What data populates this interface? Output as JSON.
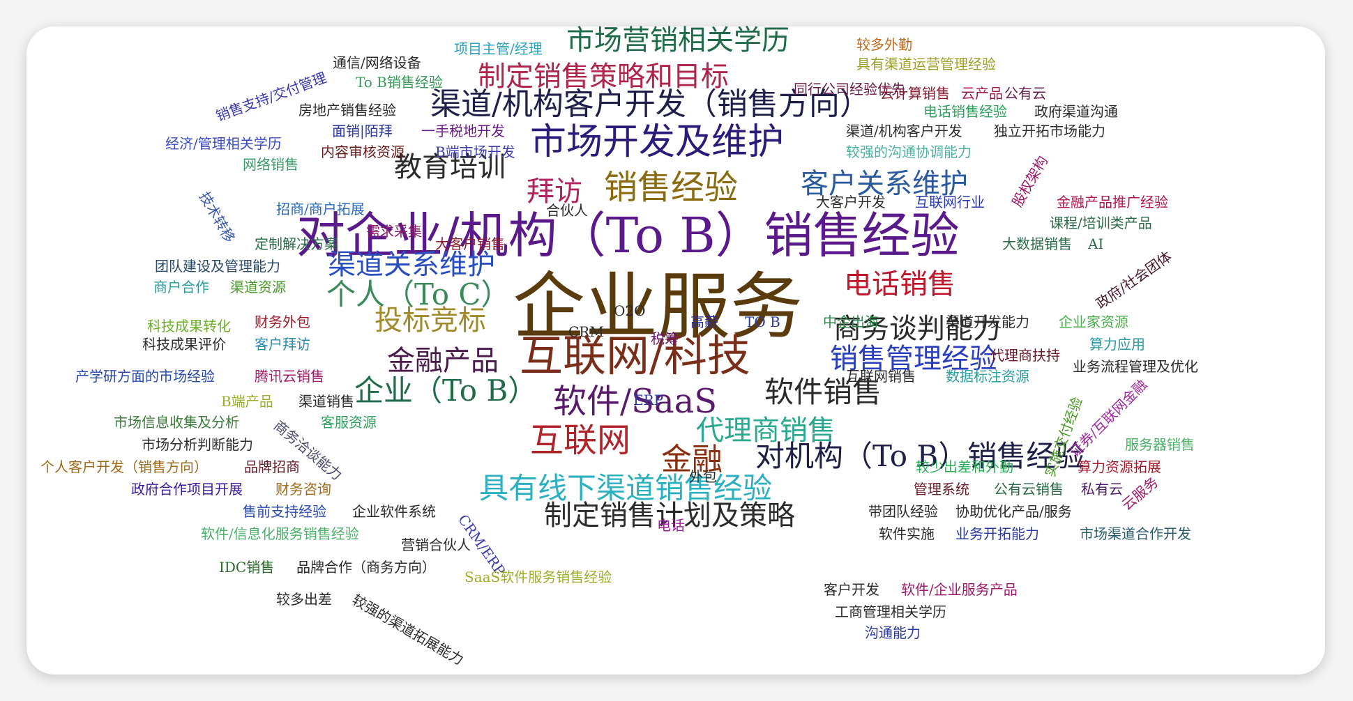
{
  "words": [
    {
      "id": "w0",
      "text": "企业服务",
      "color": "#5a3b0e"
    },
    {
      "id": "w1",
      "text": "对企业/机构（To B）销售经验",
      "color": "#5a1a8c"
    },
    {
      "id": "w2",
      "text": "互联网/科技",
      "color": "#7a2e1a"
    },
    {
      "id": "w3",
      "text": "市场开发及维护",
      "color": "#2a1c7a"
    },
    {
      "id": "w4",
      "text": "渠道/机构客户开发（销售方向）",
      "color": "#1f1f4a"
    },
    {
      "id": "w5",
      "text": "销售经验",
      "color": "#8a6b10"
    },
    {
      "id": "w6",
      "text": "市场营销相关学历",
      "color": "#1f6b4a"
    },
    {
      "id": "w7",
      "text": "制定销售策略和目标",
      "color": "#b0254b"
    },
    {
      "id": "w8",
      "text": "教育培训",
      "color": "#2b2b2b"
    },
    {
      "id": "w9",
      "text": "客户关系维护",
      "color": "#2a5aa0"
    },
    {
      "id": "w10",
      "text": "拜访",
      "color": "#b02560"
    },
    {
      "id": "w11",
      "text": "渠道关系维护",
      "color": "#2a4fc0"
    },
    {
      "id": "w12",
      "text": "个人（To C）",
      "color": "#3b8a5a"
    },
    {
      "id": "w13",
      "text": "电话销售",
      "color": "#c0152a"
    },
    {
      "id": "w14",
      "text": "投标竞标",
      "color": "#a08a2a"
    },
    {
      "id": "w15",
      "text": "商务谈判能力",
      "color": "#2b2b2b"
    },
    {
      "id": "w16",
      "text": "金融产品",
      "color": "#4a1a4a"
    },
    {
      "id": "w17",
      "text": "销售管理经验",
      "color": "#2a3fc0"
    },
    {
      "id": "w18",
      "text": "企业（To B）",
      "color": "#1f6b4a"
    },
    {
      "id": "w19",
      "text": "软件/SaaS",
      "color": "#5a1a6b"
    },
    {
      "id": "w20",
      "text": "软件销售",
      "color": "#2b2b2b"
    },
    {
      "id": "w21",
      "text": "代理商销售",
      "color": "#2aa890"
    },
    {
      "id": "w22",
      "text": "互联网",
      "color": "#b0252b"
    },
    {
      "id": "w23",
      "text": "金融",
      "color": "#8a2e0e"
    },
    {
      "id": "w24",
      "text": "对机构（To B）销售经验",
      "color": "#1f1f4a"
    },
    {
      "id": "w25",
      "text": "具有线下渠道销售经验",
      "color": "#2ab0c0"
    },
    {
      "id": "w26",
      "text": "制定销售计划及策略",
      "color": "#2b2b2b"
    },
    {
      "id": "w27",
      "text": "项目主管/经理",
      "color": "#2aa0c0"
    },
    {
      "id": "w28",
      "text": "较多外勤",
      "color": "#c06a1a"
    },
    {
      "id": "w29",
      "text": "通信/网络设备",
      "color": "#2b2b2b"
    },
    {
      "id": "w30",
      "text": "具有渠道运营管理经验",
      "color": "#a0a02a"
    },
    {
      "id": "w31",
      "text": "To B销售经验",
      "color": "#3b9a5a"
    },
    {
      "id": "w32",
      "text": "同行公司经验优先",
      "color": "#6a1a4a"
    },
    {
      "id": "w33",
      "text": "云计算销售",
      "color": "#8a1a2a"
    },
    {
      "id": "w34",
      "text": "云产品",
      "color": "#a01a4a"
    },
    {
      "id": "w35",
      "text": "公有云",
      "color": "#6a1a4a"
    },
    {
      "id": "w36",
      "text": "销售支持/交付管理",
      "color": "#3a3ab0"
    },
    {
      "id": "w37",
      "text": "房地产销售经验",
      "color": "#2b2b2b"
    },
    {
      "id": "w38",
      "text": "电话销售经验",
      "color": "#2aa05a"
    },
    {
      "id": "w39",
      "text": "政府渠道沟通",
      "color": "#2b2b2b"
    },
    {
      "id": "w40",
      "text": "经济/管理相关学历",
      "color": "#3a4ac0"
    },
    {
      "id": "w41",
      "text": "面销|陌拜",
      "color": "#2a3aa0"
    },
    {
      "id": "w42",
      "text": "一手税地开发",
      "color": "#6a1a8a"
    },
    {
      "id": "w43",
      "text": "渠道/机构客户开发",
      "color": "#2b2b2b"
    },
    {
      "id": "w44",
      "text": "独立开拓市场能力",
      "color": "#2b2b2b"
    },
    {
      "id": "w45",
      "text": "内容审核资源",
      "color": "#6a1a1a"
    },
    {
      "id": "w46",
      "text": "B端市场开发",
      "color": "#3a3ab0"
    },
    {
      "id": "w47",
      "text": "较强的沟通协调能力",
      "color": "#4ab0a0"
    },
    {
      "id": "w48",
      "text": "股权架构",
      "color": "#a01a6a"
    },
    {
      "id": "w49",
      "text": "网络销售",
      "color": "#3a9a6a"
    },
    {
      "id": "w50",
      "text": "技术转移",
      "color": "#3a5ab0"
    },
    {
      "id": "w51",
      "text": "招商/商户拓展",
      "color": "#2a6ac0"
    },
    {
      "id": "w52",
      "text": "合伙人",
      "color": "#2b2b2b"
    },
    {
      "id": "w53",
      "text": "大客户开发",
      "color": "#2b2b2b"
    },
    {
      "id": "w54",
      "text": "互联网行业",
      "color": "#2a3ab0"
    },
    {
      "id": "w55",
      "text": "金融产品推广经验",
      "color": "#b01a4a"
    },
    {
      "id": "w56",
      "text": "需求采集",
      "color": "#8a1a6a"
    },
    {
      "id": "w57",
      "text": "课程/培训类产品",
      "color": "#2a6a4a"
    },
    {
      "id": "w58",
      "text": "定制解决方案",
      "color": "#2a6a4a"
    },
    {
      "id": "w59",
      "text": "大客户销售",
      "color": "#8a1a2a"
    },
    {
      "id": "w60",
      "text": "大数据销售",
      "color": "#2a6a4a"
    },
    {
      "id": "w61",
      "text": "AI",
      "color": "#2a6a4a"
    },
    {
      "id": "w62",
      "text": "团队建设及管理能力",
      "color": "#2a4a6a"
    },
    {
      "id": "w63",
      "text": "政府/社会团体",
      "color": "#4a1a2a"
    },
    {
      "id": "w64",
      "text": "商户合作",
      "color": "#2a9a9a"
    },
    {
      "id": "w65",
      "text": "渠道资源",
      "color": "#4a9a2a"
    },
    {
      "id": "w66",
      "text": "O2O",
      "color": "#2b2b2b"
    },
    {
      "id": "w67",
      "text": "科技成果转化",
      "color": "#6ab02a"
    },
    {
      "id": "w68",
      "text": "财务外包",
      "color": "#a01a2a"
    },
    {
      "id": "w69",
      "text": "CRM",
      "color": "#2b2b2b"
    },
    {
      "id": "w70",
      "text": "税筹",
      "color": "#6a1a6a"
    },
    {
      "id": "w71",
      "text": "高薪",
      "color": "#2a2a8a"
    },
    {
      "id": "w72",
      "text": "TO B",
      "color": "#2a3aa0"
    },
    {
      "id": "w73",
      "text": "中企出海",
      "color": "#2a8a4a"
    },
    {
      "id": "w74",
      "text": "渠道开发能力",
      "color": "#2b2b2b"
    },
    {
      "id": "w75",
      "text": "企业家资源",
      "color": "#4ab04a"
    },
    {
      "id": "w76",
      "text": "科技成果评价",
      "color": "#2b2b2b"
    },
    {
      "id": "w77",
      "text": "客户拜访",
      "color": "#2a8ab0"
    },
    {
      "id": "w78",
      "text": "算力应用",
      "color": "#2a9aa0"
    },
    {
      "id": "w79",
      "text": "代理商扶持",
      "color": "#6a1a2a"
    },
    {
      "id": "w80",
      "text": "业务流程管理及优化",
      "color": "#2b2b2b"
    },
    {
      "id": "w81",
      "text": "产学研方面的市场经验",
      "color": "#2a4ab0"
    },
    {
      "id": "w82",
      "text": "腾讯云销售",
      "color": "#a01a6a"
    },
    {
      "id": "w83",
      "text": "互联网销售",
      "color": "#2b2b2b"
    },
    {
      "id": "w84",
      "text": "数据标注资源",
      "color": "#2aa0a0"
    },
    {
      "id": "w85",
      "text": "ERP",
      "color": "#2a3aa0"
    },
    {
      "id": "w86",
      "text": "B端产品",
      "color": "#9ab02a"
    },
    {
      "id": "w87",
      "text": "渠道销售",
      "color": "#2b2b2b"
    },
    {
      "id": "w88",
      "text": "市场信息收集及分析",
      "color": "#3a7a3a"
    },
    {
      "id": "w89",
      "text": "商务洽谈能力",
      "color": "#4a4a6a"
    },
    {
      "id": "w90",
      "text": "客服资源",
      "color": "#2aa05a"
    },
    {
      "id": "w91",
      "text": "实施交付经验",
      "color": "#4a9a2a"
    },
    {
      "id": "w92",
      "text": "证券/互联网金融",
      "color": "#a02aa0"
    },
    {
      "id": "w93",
      "text": "市场分析判断能力",
      "color": "#2b2b2b"
    },
    {
      "id": "w94",
      "text": "服务器销售",
      "color": "#4ab06a"
    },
    {
      "id": "w95",
      "text": "个人客户开发（销售方向）",
      "color": "#a06a1a"
    },
    {
      "id": "w96",
      "text": "品牌招商",
      "color": "#6a1a2a"
    },
    {
      "id": "w97",
      "text": "外包",
      "color": "#2b2b2b"
    },
    {
      "id": "w98",
      "text": "较少出差和外勤",
      "color": "#2ab05a"
    },
    {
      "id": "w99",
      "text": "算力资源拓展",
      "color": "#a01a2a"
    },
    {
      "id": "w100",
      "text": "政府合作项目开展",
      "color": "#3a1aa0"
    },
    {
      "id": "w101",
      "text": "财务咨询",
      "color": "#a06a1a"
    },
    {
      "id": "w102",
      "text": "管理系统",
      "color": "#6a1a2a"
    },
    {
      "id": "w103",
      "text": "公有云销售",
      "color": "#2a6a4a"
    },
    {
      "id": "w104",
      "text": "私有云",
      "color": "#4a1a6a"
    },
    {
      "id": "w105",
      "text": "云服务",
      "color": "#a01a6a"
    },
    {
      "id": "w106",
      "text": "售前支持经验",
      "color": "#2a4ab0"
    },
    {
      "id": "w107",
      "text": "企业软件系统",
      "color": "#2b2b2b"
    },
    {
      "id": "w108",
      "text": "CRM/ERP",
      "color": "#3a3ab0"
    },
    {
      "id": "w109",
      "text": "带团队经验",
      "color": "#2b2b2b"
    },
    {
      "id": "w110",
      "text": "协助优化产品/服务",
      "color": "#2b2b2b"
    },
    {
      "id": "w111",
      "text": "软件/信息化服务销售经验",
      "color": "#4ab06a"
    },
    {
      "id": "w112",
      "text": "电话",
      "color": "#a01aa0"
    },
    {
      "id": "w113",
      "text": "软件实施",
      "color": "#2b2b2b"
    },
    {
      "id": "w114",
      "text": "业务开拓能力",
      "color": "#2a3aa0"
    },
    {
      "id": "w115",
      "text": "市场渠道合作开发",
      "color": "#2a5a6a"
    },
    {
      "id": "w116",
      "text": "营销合伙人",
      "color": "#2b2b2b"
    },
    {
      "id": "w117",
      "text": "IDC销售",
      "color": "#2a6a2a"
    },
    {
      "id": "w118",
      "text": "品牌合作（商务方向）",
      "color": "#2b2b2b"
    },
    {
      "id": "w119",
      "text": "SaaS软件服务销售经验",
      "color": "#9ab02a"
    },
    {
      "id": "w120",
      "text": "客户开发",
      "color": "#2b2b2b"
    },
    {
      "id": "w121",
      "text": "软件/企业服务产品",
      "color": "#a01a6a"
    },
    {
      "id": "w122",
      "text": "较多出差",
      "color": "#2b2b2b"
    },
    {
      "id": "w123",
      "text": "较强的渠道拓展能力",
      "color": "#2b2b2b"
    },
    {
      "id": "w124",
      "text": "工商管理相关学历",
      "color": "#2b2b2b"
    },
    {
      "id": "w125",
      "text": "沟通能力",
      "color": "#2a3aa0"
    }
  ]
}
